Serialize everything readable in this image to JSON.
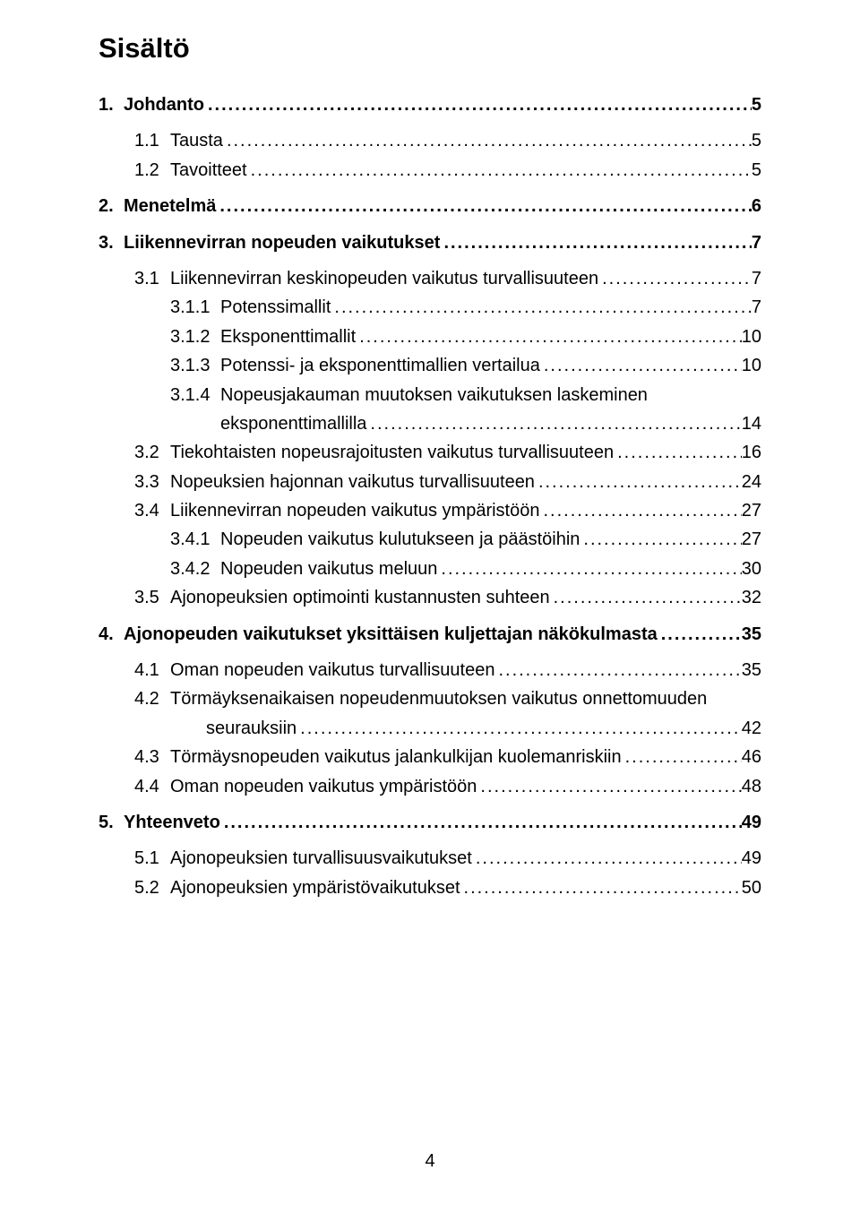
{
  "title": "Sisältö",
  "toc": [
    {
      "level": 1,
      "num": "1.",
      "label": "Johdanto",
      "page": "5"
    },
    {
      "level": 2,
      "num": "1.1",
      "label": "Tausta",
      "page": "5"
    },
    {
      "level": 2,
      "num": "1.2",
      "label": "Tavoitteet",
      "page": "5"
    },
    {
      "level": 1,
      "num": "2.",
      "label": "Menetelmä",
      "page": "6"
    },
    {
      "level": 1,
      "num": "3.",
      "label": "Liikennevirran nopeuden vaikutukset",
      "page": "7"
    },
    {
      "level": 2,
      "num": "3.1",
      "label": "Liikennevirran keskinopeuden vaikutus turvallisuuteen",
      "page": "7"
    },
    {
      "level": 3,
      "num": "3.1.1",
      "label": "Potenssimallit",
      "page": "7"
    },
    {
      "level": 3,
      "num": "3.1.2",
      "label": "Eksponenttimallit",
      "page": "10"
    },
    {
      "level": 3,
      "num": "3.1.3",
      "label": "Potenssi- ja eksponenttimallien vertailua",
      "page": "10"
    },
    {
      "level": 3,
      "num": "3.1.4",
      "label": "Nopeusjakauman muutoksen vaikutuksen laskeminen",
      "cont": "eksponenttimallilla",
      "page": "14"
    },
    {
      "level": 2,
      "num": "3.2",
      "label": "Tiekohtaisten nopeusrajoitusten vaikutus turvallisuuteen",
      "page": "16"
    },
    {
      "level": 2,
      "num": "3.3",
      "label": "Nopeuksien hajonnan vaikutus turvallisuuteen",
      "page": "24"
    },
    {
      "level": 2,
      "num": "3.4",
      "label": "Liikennevirran nopeuden vaikutus ympäristöön",
      "page": "27"
    },
    {
      "level": 3,
      "num": "3.4.1",
      "label": "Nopeuden vaikutus kulutukseen ja päästöihin",
      "page": "27"
    },
    {
      "level": 3,
      "num": "3.4.2",
      "label": "Nopeuden vaikutus meluun",
      "page": "30"
    },
    {
      "level": 2,
      "num": "3.5",
      "label": "Ajonopeuksien optimointi kustannusten suhteen",
      "page": "32"
    },
    {
      "level": 1,
      "num": "4.",
      "label": "Ajonopeuden vaikutukset yksittäisen kuljettajan näkökulmasta",
      "page": "35"
    },
    {
      "level": 2,
      "num": "4.1",
      "label": "Oman nopeuden vaikutus turvallisuuteen",
      "page": "35"
    },
    {
      "level": 2,
      "num": "4.2",
      "label": "Törmäyksenaikaisen nopeudenmuutoksen vaikutus onnettomuuden",
      "cont": "seurauksiin",
      "page": "42"
    },
    {
      "level": 2,
      "num": "4.3",
      "label": "Törmäysnopeuden vaikutus jalankulkijan kuolemanriskiin",
      "page": "46"
    },
    {
      "level": 2,
      "num": "4.4",
      "label": "Oman nopeuden vaikutus ympäristöön",
      "page": "48"
    },
    {
      "level": 1,
      "num": "5.",
      "label": "Yhteenveto",
      "page": "49"
    },
    {
      "level": 2,
      "num": "5.1",
      "label": "Ajonopeuksien turvallisuusvaikutukset",
      "page": "49"
    },
    {
      "level": 2,
      "num": "5.2",
      "label": "Ajonopeuksien ympäristövaikutukset",
      "page": "50"
    }
  ],
  "dotfill": "............................................................................................................................................................................",
  "page_number": "4",
  "colors": {
    "background": "#ffffff",
    "text": "#000000"
  }
}
